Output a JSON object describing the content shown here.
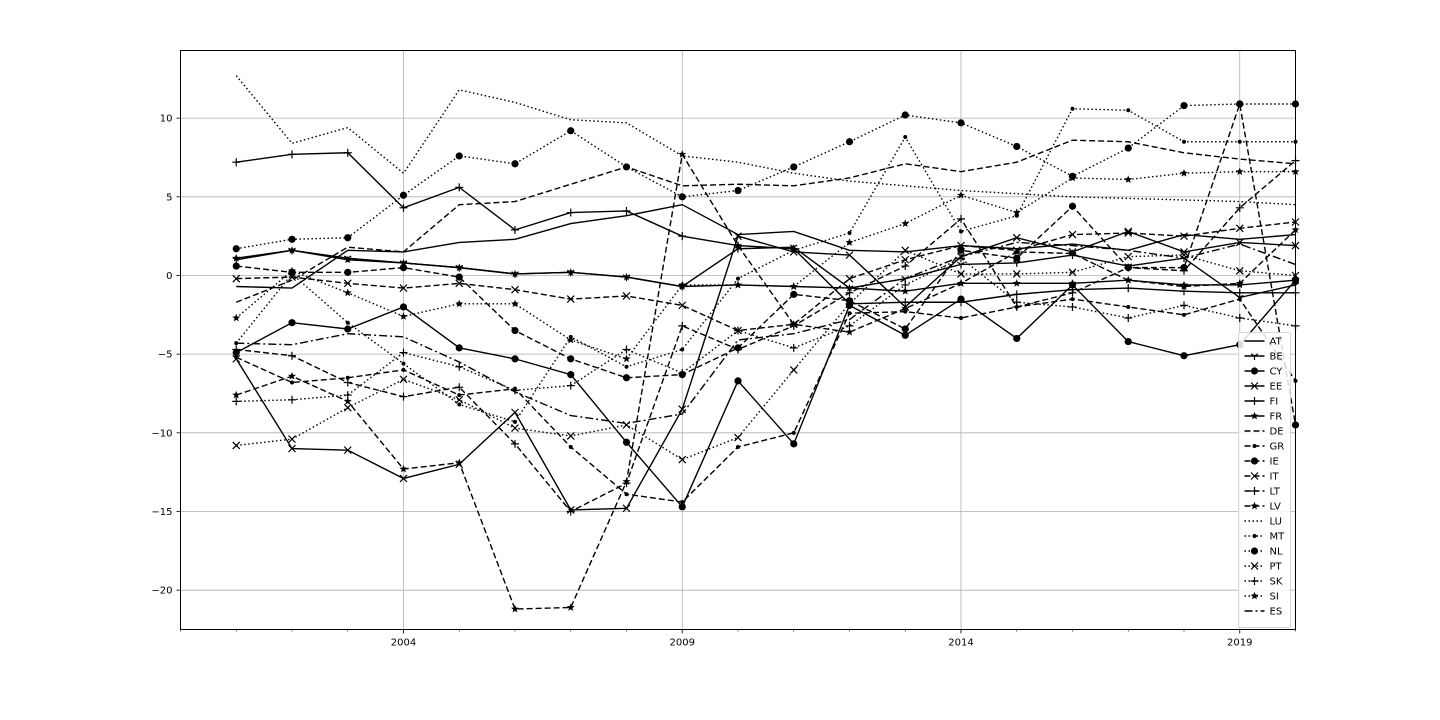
{
  "chart_data": {
    "type": "line",
    "title": "",
    "xlabel": "",
    "ylabel": "",
    "x": [
      2001,
      2002,
      2003,
      2004,
      2005,
      2006,
      2007,
      2008,
      2009,
      2010,
      2011,
      2012,
      2013,
      2014,
      2015,
      2016,
      2017,
      2018,
      2019,
      2020
    ],
    "xlim": [
      2000.0,
      2020.0
    ],
    "ylim": [
      -22.5,
      14.3
    ],
    "xticks": [
      2004,
      2009,
      2014,
      2019
    ],
    "xtick_labels": [
      "2004",
      "2009",
      "2014",
      "2019"
    ],
    "yticks": [
      -20,
      -15,
      -10,
      -5,
      0,
      5,
      10
    ],
    "ytick_labels": [
      "−20",
      "−15",
      "−10",
      "−5",
      "0",
      "5",
      "10"
    ],
    "grid": true,
    "legend_position": "lower-right",
    "series": [
      {
        "name": "AT",
        "linestyle": "solid",
        "marker": "none",
        "values": [
          -0.7,
          -0.8,
          1.6,
          1.5,
          2.1,
          2.3,
          3.3,
          3.8,
          4.5,
          2.6,
          2.8,
          1.6,
          1.5,
          1.9,
          1.7,
          2.0,
          1.6,
          2.6,
          2.3,
          2.6
        ]
      },
      {
        "name": "BE",
        "linestyle": "solid",
        "marker": "tri",
        "values": [
          1.0,
          1.6,
          1.1,
          0.8,
          0.5,
          0.1,
          0.2,
          -0.1,
          -0.7,
          1.7,
          1.8,
          -0.8,
          -0.2,
          0.7,
          0.8,
          1.3,
          0.6,
          1.1,
          -1.4,
          -0.6
        ]
      },
      {
        "name": "CY",
        "linestyle": "solid",
        "marker": "circle",
        "values": [
          -4.9,
          -3.0,
          -3.4,
          -2.0,
          -4.6,
          -5.3,
          -6.3,
          -10.6,
          -14.7,
          -6.7,
          -10.7,
          -1.9,
          -3.8,
          -1.5,
          -4.0,
          -0.6,
          -4.2,
          -5.1,
          -4.4,
          -0.3
        ]
      },
      {
        "name": "EE",
        "linestyle": "solid",
        "marker": "x",
        "values": [
          -5.3,
          -11.0,
          -11.1,
          -12.9,
          -12.0,
          -8.7,
          -14.9,
          -14.8,
          -8.5,
          2.5,
          1.5,
          1.3,
          -2.0,
          1.2,
          2.4,
          1.5,
          2.8,
          1.5,
          2.1,
          1.9
        ]
      },
      {
        "name": "FI",
        "linestyle": "solid",
        "marker": "plus",
        "values": [
          7.2,
          7.7,
          7.8,
          4.3,
          5.6,
          2.9,
          4.0,
          4.1,
          2.5,
          1.9,
          1.7,
          -1.8,
          -1.7,
          -1.7,
          -1.2,
          -0.9,
          -0.8,
          -1.0,
          -1.1,
          -1.1
        ]
      },
      {
        "name": "FR",
        "linestyle": "solid",
        "marker": "star",
        "values": [
          1.1,
          1.6,
          1.0,
          0.8,
          0.5,
          0.1,
          0.2,
          -0.1,
          -0.7,
          -0.6,
          -0.7,
          -0.8,
          -1.0,
          -0.5,
          -0.5,
          -0.5,
          -0.3,
          -0.6,
          -0.6,
          -0.3
        ]
      },
      {
        "name": "DE",
        "linestyle": "dashed",
        "marker": "none",
        "values": [
          -1.7,
          -0.3,
          1.8,
          1.5,
          4.5,
          4.7,
          5.8,
          6.9,
          5.7,
          5.8,
          5.7,
          6.2,
          7.1,
          6.6,
          7.2,
          8.6,
          8.5,
          7.8,
          7.4,
          7.1
        ]
      },
      {
        "name": "GR",
        "linestyle": "dashed",
        "marker": "dot",
        "values": [
          -5.2,
          -6.8,
          -6.5,
          -6.0,
          -7.6,
          -7.2,
          -10.9,
          -13.9,
          -14.4,
          -10.9,
          -10.0,
          -2.4,
          -2.3,
          -2.7,
          -2.0,
          -1.5,
          -2.0,
          -2.5,
          -1.5,
          -6.7
        ]
      },
      {
        "name": "IE",
        "linestyle": "dashed",
        "marker": "circle",
        "values": [
          0.6,
          0.2,
          0.2,
          0.5,
          -0.1,
          -3.5,
          -5.3,
          -6.5,
          -6.3,
          -4.6,
          -1.2,
          -1.6,
          -3.4,
          1.6,
          1.1,
          4.4,
          0.5,
          0.5,
          10.9,
          -9.5
        ]
      },
      {
        "name": "IT",
        "linestyle": "dashed",
        "marker": "x",
        "values": [
          -0.2,
          -0.1,
          -0.5,
          -0.8,
          -0.5,
          -0.9,
          -1.5,
          -1.3,
          -1.9,
          -3.5,
          -3.1,
          -0.2,
          1.0,
          1.9,
          1.6,
          2.6,
          2.7,
          2.5,
          3.0,
          3.4
        ]
      },
      {
        "name": "LT",
        "linestyle": "dashed",
        "marker": "plus",
        "values": [
          -4.7,
          -5.1,
          -6.8,
          -7.7,
          -7.1,
          -10.7,
          -15.0,
          -13.2,
          -3.2,
          -4.7,
          -3.2,
          -1.1,
          0.6,
          3.6,
          -2.0,
          -1.1,
          0.5,
          0.3,
          4.3,
          7.3
        ]
      },
      {
        "name": "LV",
        "linestyle": "dashed",
        "marker": "star",
        "values": [
          -7.6,
          -6.4,
          -8.0,
          -12.3,
          -11.9,
          -21.2,
          -21.1,
          -13.1,
          7.7,
          1.9,
          -3.1,
          -3.6,
          -2.1,
          -0.5,
          1.5,
          1.4,
          -0.3,
          -0.7,
          -0.5,
          2.9
        ]
      },
      {
        "name": "LU",
        "linestyle": "dotted",
        "marker": "none",
        "values": [
          12.7,
          8.4,
          9.4,
          6.5,
          11.8,
          11.0,
          9.9,
          9.7,
          7.6,
          7.2,
          6.5,
          6.0,
          5.7,
          5.4,
          5.2,
          5.0,
          4.9,
          4.8,
          4.7,
          4.5
        ]
      },
      {
        "name": "MT",
        "linestyle": "dotted",
        "marker": "dot",
        "values": [
          -4.3,
          0.1,
          -3.0,
          -5.6,
          -8.2,
          -9.3,
          -3.9,
          -5.8,
          -4.7,
          -0.2,
          1.6,
          2.7,
          8.8,
          2.8,
          3.8,
          10.6,
          10.5,
          8.5,
          8.5,
          8.5
        ]
      },
      {
        "name": "NL",
        "linestyle": "dotted",
        "marker": "circle",
        "values": [
          1.7,
          2.3,
          2.4,
          5.1,
          7.6,
          7.1,
          9.2,
          6.9,
          5.0,
          5.4,
          6.9,
          8.5,
          10.2,
          9.7,
          8.2,
          6.3,
          8.1,
          10.8,
          10.9,
          10.9
        ]
      },
      {
        "name": "PT",
        "linestyle": "dotted",
        "marker": "x",
        "values": [
          -10.8,
          -10.4,
          -8.4,
          -6.6,
          -7.9,
          -9.7,
          -10.2,
          -9.5,
          -11.7,
          -10.3,
          -6.0,
          -1.8,
          1.6,
          0.1,
          0.1,
          0.2,
          1.2,
          1.3,
          0.3,
          0.0
        ]
      },
      {
        "name": "SK",
        "linestyle": "dotted",
        "marker": "plus",
        "values": [
          -8.0,
          -7.9,
          -7.6,
          -4.9,
          -5.8,
          -7.3,
          -7.0,
          -4.7,
          -6.2,
          -3.5,
          -4.6,
          -3.2,
          -0.6,
          1.1,
          -1.7,
          -2.0,
          -2.7,
          -1.9,
          -2.7,
          -3.2
        ]
      },
      {
        "name": "SI",
        "linestyle": "dotted",
        "marker": "star",
        "values": [
          -2.7,
          0.3,
          -1.1,
          -2.6,
          -1.8,
          -1.8,
          -4.1,
          -5.3,
          -0.6,
          -0.6,
          -0.7,
          2.1,
          3.3,
          5.1,
          4.0,
          6.2,
          6.1,
          6.5,
          6.6,
          6.6
        ]
      },
      {
        "name": "ES",
        "linestyle": "dashdot",
        "marker": "none",
        "values": [
          -4.3,
          -4.4,
          -3.7,
          -3.9,
          -5.5,
          -7.4,
          -8.9,
          -9.4,
          -8.8,
          -4.1,
          -3.7,
          -2.8,
          -0.2,
          1.2,
          2.1,
          1.9,
          1.6,
          1.1,
          2.0,
          0.7
        ]
      }
    ]
  }
}
